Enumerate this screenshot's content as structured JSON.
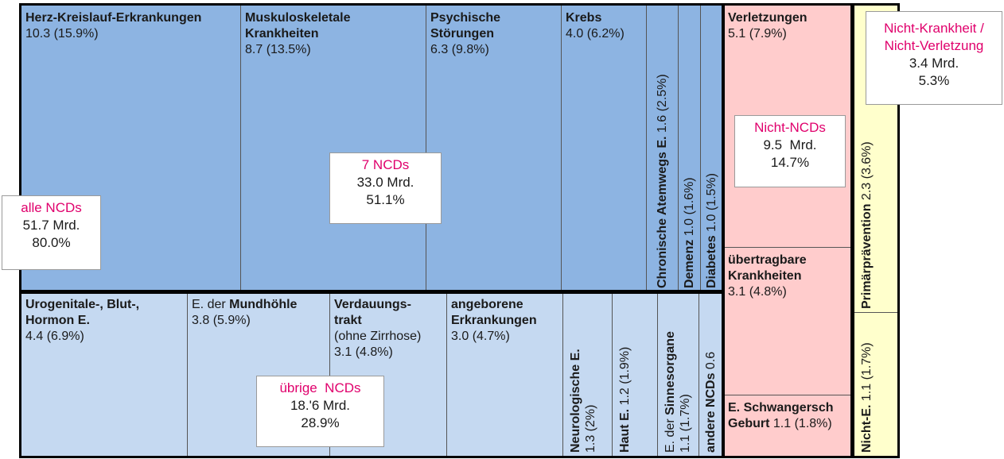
{
  "chart_data": {
    "type": "treemap",
    "unit": "Mrd.",
    "groups": [
      {
        "name": "7 NCDs",
        "callout": {
          "name": "7 NCDs",
          "value": "33.0  Mrd.",
          "share": "51.1%"
        },
        "items": [
          {
            "label": "Herz-Kreislauf-Erkrankungen",
            "value_text": "10.3 (15.9%)",
            "value": 10.3,
            "share": 15.9
          },
          {
            "label": "Muskuloskeletale Krankheiten",
            "value_text": "8.7 (13.5%)",
            "value": 8.7,
            "share": 13.5
          },
          {
            "label": "Psychische Störungen",
            "value_text": "6.3 (9.8%)",
            "value": 6.3,
            "share": 9.8
          },
          {
            "label": "Krebs",
            "value_text": "4.0 (6.2%)",
            "value": 4.0,
            "share": 6.2
          },
          {
            "label": "Chronische Atemwegs E.",
            "value_text": "1.6 (2.5%)",
            "value": 1.6,
            "share": 2.5
          },
          {
            "label": "Demenz",
            "value_text": "1.0 (1.6%)",
            "value": 1.0,
            "share": 1.6
          },
          {
            "label": "Diabetes",
            "value_text": "1.0 (1.5%)",
            "value": 1.0,
            "share": 1.5
          }
        ]
      },
      {
        "name": "übrige NCDs",
        "callout": {
          "name": "übrige  NCDs",
          "value": "18.'6 Mrd.",
          "share": "28.9%"
        },
        "items": [
          {
            "label": "Urogenitale-, Blut-, Hormon E.",
            "value_text": "4.4 (6.9%)",
            "value": 4.4,
            "share": 6.9
          },
          {
            "label_prefix": "E. der ",
            "label": "Mundhöhle",
            "value_text": "3.8 (5.9%)",
            "value": 3.8,
            "share": 5.9
          },
          {
            "label": "Verdauungs-trakt",
            "sublabel": "(ohne Zirrhose)",
            "value_text": "3.1 (4.8%)",
            "value": 3.1,
            "share": 4.8
          },
          {
            "label": "angeborene Erkrankungen",
            "value_text": "3.0 (4.7%)",
            "value": 3.0,
            "share": 4.7
          },
          {
            "label": "Neurologische E.",
            "value_text": "1.3 (2%)",
            "value": 1.3,
            "share": 2.0
          },
          {
            "label": "Haut E.",
            "value_text": "1.2 (1.9%)",
            "value": 1.2,
            "share": 1.9
          },
          {
            "label_prefix": "E. der ",
            "label": "Sinnesorgane",
            "value_text": "1.1 (1.7%)",
            "value": 1.1,
            "share": 1.7
          },
          {
            "label": "andere NCDs",
            "value_text": "0.6",
            "value": 0.6
          }
        ]
      },
      {
        "name": "Nicht-NCDs",
        "callout": {
          "name": "Nicht-NCDs",
          "value": "9.5  Mrd.",
          "share": "14.7%"
        },
        "items": [
          {
            "label": "Verletzungen",
            "value_text": "5.1 (7.9%)",
            "value": 5.1,
            "share": 7.9
          },
          {
            "label": "übertragbare Krankheiten",
            "value_text": "3.1 (4.8%)",
            "value": 3.1,
            "share": 4.8
          },
          {
            "label": "E. Schwangersch",
            "label2": "Geburt",
            "value_text": "1.1 (1.8%)",
            "value": 1.1,
            "share": 1.8
          }
        ]
      },
      {
        "name": "Nicht-Krankheit / Nicht-Verletzung",
        "callout": {
          "name1": "Nicht-Krankheit /",
          "name2": "Nicht-Verletzung",
          "value": "3.4 Mrd.",
          "share": "5.3%"
        },
        "items": [
          {
            "label": "Primärprävention",
            "value_text": "2.3 (3.6%)",
            "value": 2.3,
            "share": 3.6
          },
          {
            "label": "Nicht-E.",
            "value_text": "1.1 (1.7%)",
            "value": 1.1,
            "share": 1.7
          }
        ]
      }
    ],
    "total_callout": {
      "name": "alle NCDs",
      "value": "51.7 Mrd.",
      "share": "80.0%"
    },
    "colors": {
      "ncd7": "#8db4e2",
      "other_ncd": "#c5d9f1",
      "non_ncd": "#ffcccc",
      "prevention": "#ffffcc",
      "callout_text": "#e0006c"
    }
  }
}
